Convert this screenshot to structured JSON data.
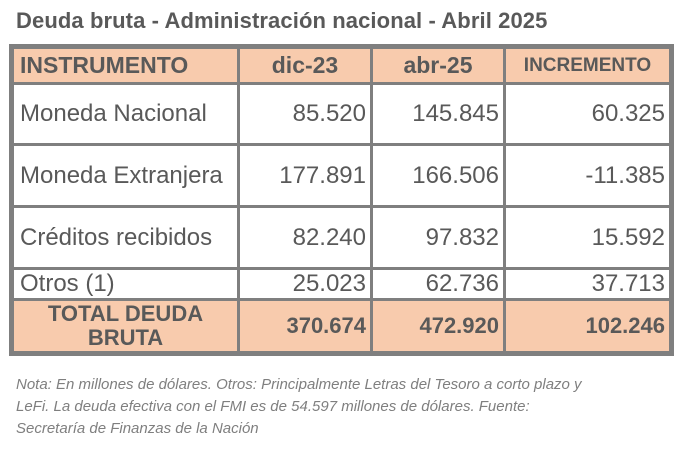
{
  "title": "Deuda bruta - Administración nacional - Abril 2025",
  "table": {
    "headers": [
      "INSTRUMENTO",
      "dic-23",
      "abr-25",
      "INCREMENTO"
    ],
    "rows": [
      {
        "label": "Moneda  Nacional",
        "dic23": "85.520",
        "abr25": "145.845",
        "incremento": "60.325"
      },
      {
        "label": "Moneda Extranjera",
        "dic23": "177.891",
        "abr25": "166.506",
        "incremento": "-11.385"
      },
      {
        "label": "Créditos recibidos",
        "dic23": "82.240",
        "abr25": "97.832",
        "incremento": "15.592"
      },
      {
        "label": "Otros (1)",
        "dic23": "25.023",
        "abr25": "62.736",
        "incremento": "37.713"
      }
    ],
    "total": {
      "label": "TOTAL DEUDA BRUTA",
      "dic23": "370.674",
      "abr25": "472.920",
      "incremento": "102.246"
    }
  },
  "note": {
    "line1": "Nota: En millones de dólares. Otros: Principalmente Letras del Tesoro a corto plazo y",
    "line2": "LeFi. La deuda  efectiva con el FMI es de 54.597 millones de dólares. Fuente:",
    "line3": "Secretaría de Finanzas de la Nación"
  },
  "colors": {
    "header_bg": "#f8cbad",
    "border": "#7f7f7f",
    "text": "#595959"
  }
}
